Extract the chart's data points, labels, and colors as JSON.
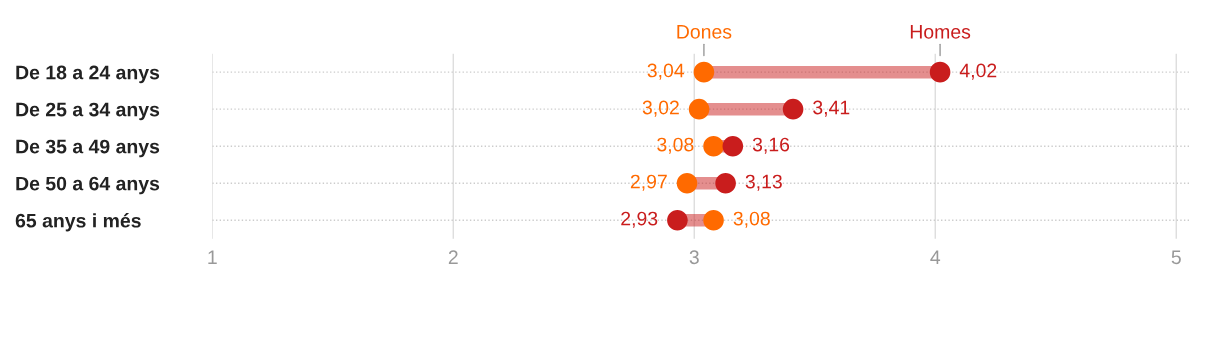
{
  "chart_data": {
    "type": "scatter",
    "orientation": "horizontal",
    "categories": [
      "De 18 a 24 anys",
      "De 25 a 34 anys",
      "De 35 a 49 anys",
      "De 50 a 64 anys",
      "65 anys i més"
    ],
    "series": [
      {
        "name": "Dones",
        "color": "#ff6a00",
        "values": [
          3.04,
          3.02,
          3.08,
          2.97,
          3.08
        ],
        "value_labels": [
          "3,04",
          "3,02",
          "3,08",
          "2,97",
          "3,08"
        ]
      },
      {
        "name": "Homes",
        "color": "#c91d1d",
        "values": [
          4.02,
          3.41,
          3.16,
          3.13,
          2.93
        ],
        "value_labels": [
          "4,02",
          "3,41",
          "3,16",
          "3,13",
          "2,93"
        ]
      }
    ],
    "xlim": [
      1,
      5.06
    ],
    "xticks": [
      1,
      2,
      3,
      4,
      5
    ],
    "grid": true,
    "marker": "circle",
    "legend": false
  }
}
